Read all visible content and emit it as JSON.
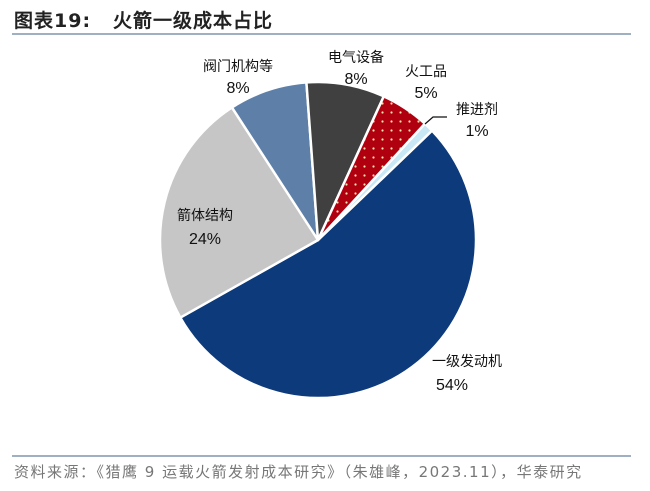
{
  "title": {
    "prefix": "图表19:",
    "text": "火箭一级成本占比"
  },
  "source": "资料来源：《猎鹰 9 运载火箭发射成本研究》（朱雄峰，2023.11），华泰研究",
  "chart_data": {
    "type": "pie",
    "start_angle_deg": 46.2,
    "direction": "clockwise",
    "legend": "none",
    "slices": [
      {
        "label": "一级发动机",
        "value": 54,
        "pct_label": "54%",
        "color": "#0d3a7a"
      },
      {
        "label": "箭体结构",
        "value": 24,
        "pct_label": "24%",
        "color": "#c6c6c6"
      },
      {
        "label": "阀门机构等",
        "value": 8,
        "pct_label": "8%",
        "color": "#5e7fa8"
      },
      {
        "label": "电气设备",
        "value": 8,
        "pct_label": "8%",
        "color": "#404040"
      },
      {
        "label": "火工品",
        "value": 5,
        "pct_label": "5%",
        "color": "#b00010",
        "pattern": "dots"
      },
      {
        "label": "推进剂",
        "value": 1,
        "pct_label": "1%",
        "color": "#c9e8f5"
      }
    ]
  }
}
